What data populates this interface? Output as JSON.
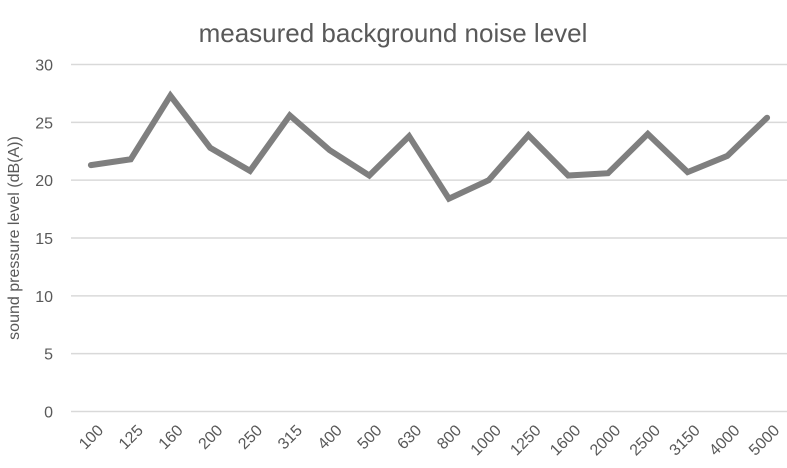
{
  "chart_data": {
    "type": "line",
    "title": "measured background noise level",
    "xlabel": "",
    "ylabel": "sound pressure level (dB(A))",
    "categories": [
      "100",
      "125",
      "160",
      "200",
      "250",
      "315",
      "400",
      "500",
      "630",
      "800",
      "1000",
      "1250",
      "1600",
      "2000",
      "2500",
      "3150",
      "4000",
      "5000"
    ],
    "series": [
      {
        "name": "measured background noise level",
        "color": "#7f7f7f",
        "values": [
          21.3,
          21.8,
          27.3,
          22.8,
          20.8,
          25.6,
          22.6,
          20.4,
          23.8,
          18.4,
          20.0,
          23.9,
          20.4,
          20.6,
          24.0,
          20.7,
          22.1,
          25.4
        ]
      }
    ],
    "ylim": [
      0,
      30
    ],
    "yticks": [
      0,
      5,
      10,
      15,
      20,
      25,
      30
    ],
    "grid": true,
    "legend": "none",
    "x_tick_rotation": -45
  },
  "colors": {
    "line": "#7f7f7f",
    "grid": "#d9d9d9",
    "text": "#595959"
  }
}
